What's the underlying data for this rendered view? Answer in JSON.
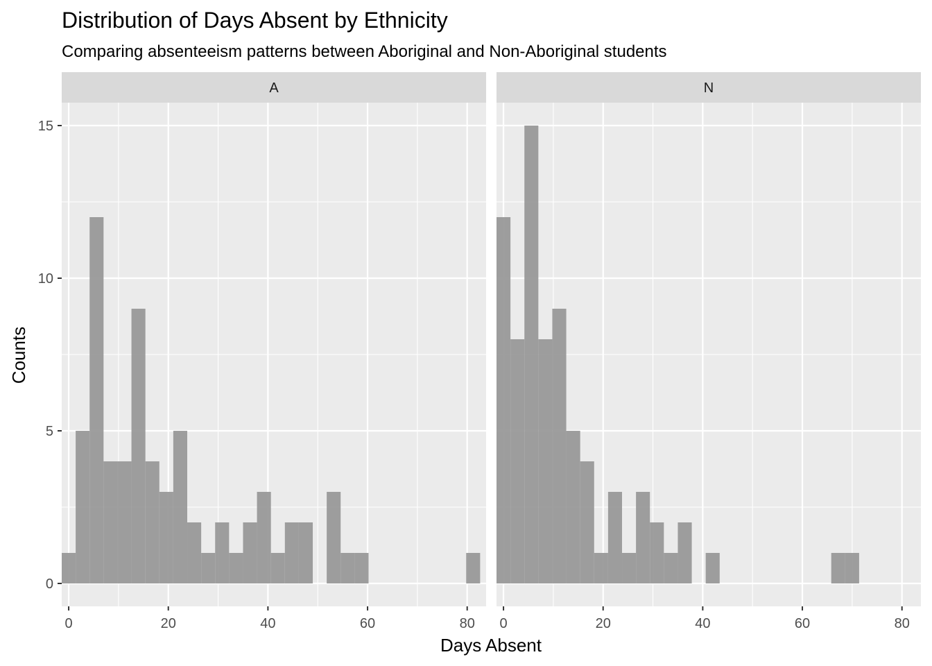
{
  "chart_data": {
    "type": "bar",
    "title": "Distribution of Days Absent by Ethnicity",
    "subtitle": "Comparing absenteeism patterns between Aboriginal and Non-Aboriginal students",
    "xlabel": "Days Absent",
    "ylabel": "Counts",
    "xlim": [
      -1.4,
      83.8
    ],
    "ylim": [
      -0.75,
      15.75
    ],
    "x_ticks": [
      0,
      20,
      40,
      60,
      80
    ],
    "y_ticks": [
      0,
      5,
      10,
      15
    ],
    "bin_width": 2.8,
    "bin_centers": [
      0,
      2.8,
      5.6,
      8.4,
      11.2,
      14,
      16.8,
      19.6,
      22.4,
      25.2,
      28,
      30.8,
      33.6,
      36.4,
      39.2,
      42,
      44.8,
      47.6,
      50.4,
      53.2,
      56,
      58.8,
      61.6,
      64.4,
      67.2,
      70,
      72.8,
      75.6,
      78.4,
      81.2
    ],
    "bar_color": "#999999",
    "panels": [
      {
        "label": "A",
        "counts": [
          1,
          5,
          12,
          4,
          4,
          9,
          4,
          3,
          5,
          2,
          1,
          2,
          1,
          2,
          3,
          1,
          2,
          2,
          0,
          3,
          1,
          1,
          0,
          0,
          0,
          0,
          0,
          0,
          0,
          1
        ]
      },
      {
        "label": "N",
        "counts": [
          12,
          8,
          15,
          8,
          9,
          5,
          4,
          1,
          3,
          1,
          3,
          2,
          1,
          2,
          0,
          1,
          0,
          0,
          0,
          0,
          0,
          0,
          0,
          0,
          1,
          1,
          0,
          0,
          0,
          0
        ]
      }
    ]
  }
}
